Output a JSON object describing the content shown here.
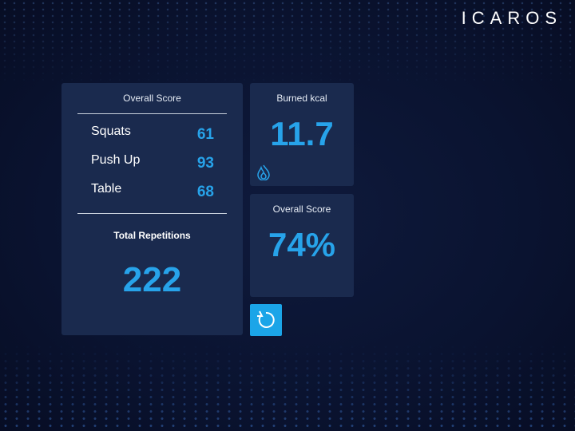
{
  "header": {
    "brand": "ICAROS"
  },
  "summary": {
    "title": "Overall Score",
    "rows": [
      [
        "Squats",
        "61"
      ],
      [
        "Push Up",
        "93"
      ],
      [
        "Table",
        "68"
      ]
    ],
    "total_label": "Total Repetitions",
    "total": "222"
  },
  "kcal": {
    "label": "Burned kcal",
    "value": "11.7"
  },
  "score": {
    "label": "Overall Score",
    "value": "74%"
  }
}
